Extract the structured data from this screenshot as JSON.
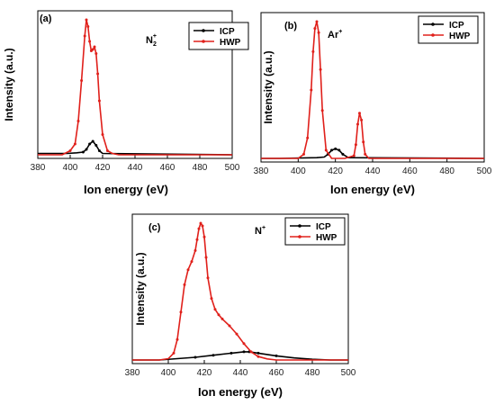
{
  "colors": {
    "ICP": "#000000",
    "HWP": "#e0201b"
  },
  "chart_data": [
    {
      "type": "line",
      "label": "(a)",
      "ion_base": "N",
      "ion_sub": "2",
      "ion_sup": "+",
      "xlabel": "Ion energy (eV)",
      "ylabel": "Intensity (a.u.)",
      "xlim": [
        380,
        500
      ],
      "ylim": [
        0,
        1
      ],
      "xticks": [
        "380",
        "400",
        "420",
        "440",
        "460",
        "480",
        "500"
      ],
      "legend_position": "top-right",
      "series": [
        {
          "name": "ICP",
          "x": [
            398,
            404,
            408,
            410,
            412,
            414,
            416,
            418,
            420,
            500
          ],
          "y": [
            0.01,
            0.015,
            0.02,
            0.04,
            0.08,
            0.1,
            0.07,
            0.03,
            0.01,
            0.0
          ]
        },
        {
          "name": "HWP",
          "x": [
            395,
            400,
            403,
            405,
            407,
            409,
            410,
            411,
            412,
            413,
            414,
            415,
            416,
            417,
            418,
            420,
            423,
            426,
            430,
            500
          ],
          "y": [
            0.0,
            0.03,
            0.08,
            0.25,
            0.55,
            0.88,
            1.0,
            0.95,
            0.84,
            0.77,
            0.78,
            0.8,
            0.75,
            0.6,
            0.4,
            0.15,
            0.03,
            0.01,
            0.0,
            0.0
          ]
        }
      ]
    },
    {
      "type": "line",
      "label": "(b)",
      "ion_base": "Ar",
      "ion_sub": "",
      "ion_sup": "+",
      "xlabel": "Ion energy (eV)",
      "ylabel": "Intensity (a.u.)",
      "xlim": [
        380,
        500
      ],
      "ylim": [
        0,
        1
      ],
      "xticks": [
        "380",
        "400",
        "420",
        "440",
        "460",
        "480",
        "500"
      ],
      "legend_position": "top-right",
      "series": [
        {
          "name": "ICP",
          "x": [
            390,
            410,
            414,
            416,
            418,
            420,
            422,
            424,
            427,
            500
          ],
          "y": [
            0.0,
            0.005,
            0.01,
            0.03,
            0.06,
            0.07,
            0.06,
            0.03,
            0.005,
            0.0
          ]
        },
        {
          "name": "HWP",
          "x": [
            390,
            400,
            403,
            405,
            407,
            408,
            409,
            410,
            411,
            412,
            413,
            415,
            418,
            425,
            430,
            431,
            432,
            433,
            434,
            435,
            436,
            438,
            445,
            500
          ],
          "y": [
            0.0,
            0.0,
            0.03,
            0.15,
            0.5,
            0.78,
            0.95,
            1.0,
            0.92,
            0.65,
            0.35,
            0.06,
            0.0,
            0.0,
            0.02,
            0.1,
            0.25,
            0.33,
            0.28,
            0.12,
            0.03,
            0.0,
            0.0,
            0.0
          ]
        }
      ]
    },
    {
      "type": "line",
      "label": "(c)",
      "ion_base": "N",
      "ion_sub": "",
      "ion_sup": "+",
      "xlabel": "Ion energy (eV)",
      "ylabel": "Intensity (a.u.)",
      "xlim": [
        380,
        500
      ],
      "ylim": [
        0,
        1
      ],
      "xticks": [
        "380",
        "400",
        "420",
        "440",
        "460",
        "480",
        "500"
      ],
      "legend_position": "top-right",
      "series": [
        {
          "name": "ICP",
          "x": [
            395,
            405,
            415,
            425,
            435,
            442,
            445,
            450,
            460,
            470,
            480,
            490,
            500
          ],
          "y": [
            0.0,
            0.01,
            0.02,
            0.035,
            0.05,
            0.06,
            0.06,
            0.05,
            0.03,
            0.015,
            0.005,
            0.0,
            0.0
          ]
        },
        {
          "name": "HWP",
          "x": [
            395,
            400,
            403,
            405,
            407,
            409,
            411,
            413,
            415,
            416,
            417,
            418,
            419,
            420,
            421,
            422,
            424,
            426,
            428,
            430,
            434,
            438,
            442,
            446,
            450,
            455,
            460,
            500
          ],
          "y": [
            0.0,
            0.01,
            0.05,
            0.15,
            0.35,
            0.55,
            0.66,
            0.72,
            0.8,
            0.88,
            0.96,
            1.0,
            0.98,
            0.9,
            0.75,
            0.6,
            0.45,
            0.37,
            0.33,
            0.3,
            0.25,
            0.19,
            0.12,
            0.06,
            0.025,
            0.008,
            0.0,
            0.0
          ]
        }
      ]
    }
  ]
}
